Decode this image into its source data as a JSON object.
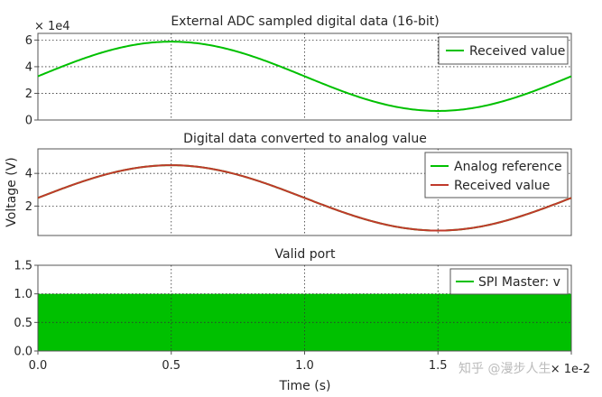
{
  "colors": {
    "green": "#00c000",
    "red": "#c0392b",
    "axis": "#555555",
    "grid": "#333333"
  },
  "xaxis": {
    "label": "Time (s)",
    "exponent": "× 1e-2",
    "tick_labels": [
      "0.0",
      "0.5",
      "1.0",
      "1.5",
      "2.0"
    ],
    "ticks": [
      0.0,
      0.5,
      1.0,
      1.5,
      2.0
    ],
    "range": [
      0.0,
      2.0
    ]
  },
  "watermark": "知乎 @漫步人生",
  "chart_data": [
    {
      "type": "line",
      "title": "External ADC sampled digital data (16-bit)",
      "exponent_label": "× 1e4",
      "ylabel": "",
      "ylim": [
        0,
        6.5
      ],
      "yticks": [
        0,
        2,
        4,
        6
      ],
      "ytick_labels": [
        "0",
        "2",
        "4",
        "6"
      ],
      "legend": {
        "position": "top-right",
        "entries": [
          "Received value"
        ]
      },
      "series": [
        {
          "name": "Received value",
          "kind": "sine",
          "offset": 3.28,
          "amplitude": 2.6,
          "period": 2.0,
          "color": "#00c000"
        }
      ]
    },
    {
      "type": "line",
      "title": "Digital data converted to analog value",
      "ylabel": "Voltage (V)",
      "ylim": [
        0.2,
        5.5
      ],
      "yticks": [
        2,
        4
      ],
      "ytick_labels": [
        "2",
        "4"
      ],
      "legend": {
        "position": "top-right",
        "entries": [
          "Analog reference",
          "Received value"
        ]
      },
      "series": [
        {
          "name": "Analog reference",
          "kind": "sine",
          "offset": 2.5,
          "amplitude": 2.0,
          "period": 2.0,
          "color": "#00c000"
        },
        {
          "name": "Received value",
          "kind": "sine",
          "offset": 2.5,
          "amplitude": 2.0,
          "period": 2.0,
          "color": "#c0392b"
        }
      ]
    },
    {
      "type": "area",
      "title": "Valid port",
      "ylabel": "",
      "ylim": [
        0.0,
        1.5
      ],
      "yticks": [
        0.0,
        0.5,
        1.0,
        1.5
      ],
      "ytick_labels": [
        "0.0",
        "0.5",
        "1.0",
        "1.5"
      ],
      "legend": {
        "position": "top-right",
        "entries": [
          "SPI Master: v"
        ]
      },
      "series": [
        {
          "name": "SPI Master: v",
          "kind": "pulse",
          "low": 0.0,
          "high": 1.0,
          "color": "#00c000"
        }
      ]
    }
  ]
}
